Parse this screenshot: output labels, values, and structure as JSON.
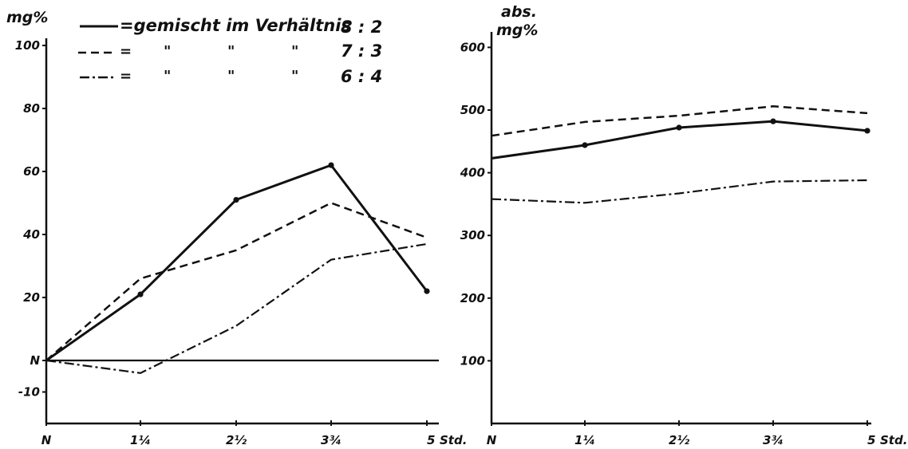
{
  "legend": {
    "header": "gemischt im Verhältnis",
    "ditto_mark": "\"",
    "ratios": [
      "8 : 2",
      "7 : 3",
      "6 : 4"
    ]
  },
  "chart_data": [
    {
      "type": "line",
      "ylabel": "mg%",
      "x": [
        "N",
        "1¼",
        "2½",
        "3¾",
        "5"
      ],
      "x_unit": "Std.",
      "y_ticks": [
        "100",
        "80",
        "60",
        "40",
        "20",
        "N",
        "-10"
      ],
      "y_tick_values": [
        100,
        80,
        60,
        40,
        20,
        0,
        -10
      ],
      "ylim": [
        -20,
        100
      ],
      "baseline": 0,
      "series": [
        {
          "ratio": "8 : 2",
          "style": "solid",
          "markers": true,
          "values": [
            0,
            21,
            51,
            62,
            22
          ]
        },
        {
          "ratio": "7 : 3",
          "style": "dashed",
          "markers": false,
          "values": [
            0,
            26,
            35,
            50,
            39
          ]
        },
        {
          "ratio": "6 : 4",
          "style": "dashdot",
          "markers": false,
          "values": [
            0,
            -4,
            11,
            32,
            37
          ]
        }
      ]
    },
    {
      "type": "line",
      "ylabel": "abs. mg%",
      "x": [
        "N",
        "1¼",
        "2½",
        "3¾",
        "5"
      ],
      "x_unit": "Std.",
      "y_ticks": [
        "600",
        "500",
        "400",
        "300",
        "200",
        "100"
      ],
      "y_tick_values": [
        600,
        500,
        400,
        300,
        200,
        100
      ],
      "ylim": [
        0,
        600
      ],
      "series": [
        {
          "ratio": "8 : 2",
          "style": "solid",
          "markers": true,
          "values": [
            423,
            444,
            472,
            482,
            467
          ]
        },
        {
          "ratio": "7 : 3",
          "style": "dashed",
          "markers": false,
          "values": [
            459,
            481,
            491,
            506,
            495
          ]
        },
        {
          "ratio": "6 : 4",
          "style": "dashdot",
          "markers": false,
          "values": [
            358,
            352,
            367,
            386,
            388
          ]
        }
      ]
    }
  ]
}
